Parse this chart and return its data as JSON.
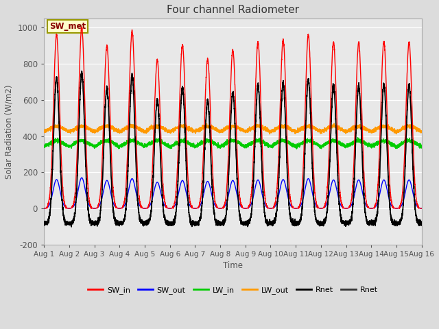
{
  "title": "Four channel Radiometer",
  "xlabel": "Time",
  "ylabel": "Solar Radiation (W/m2)",
  "ylim": [
    -200,
    1050
  ],
  "yticks": [
    -200,
    0,
    200,
    400,
    600,
    800,
    1000
  ],
  "xtick_labels": [
    "Aug 1",
    "Aug 2",
    "Aug 3",
    "Aug 4",
    "Aug 5",
    "Aug 6",
    "Aug 7",
    "Aug 8",
    "Aug 9",
    "Aug 10",
    "Aug 11",
    "Aug 12",
    "Aug 13",
    "Aug 14",
    "Aug 15",
    "Aug 16"
  ],
  "background_color": "#dcdcdc",
  "plot_bg_color": "#e8e8e8",
  "legend_label": "SW_met",
  "legend_bg": "#ffffcc",
  "legend_border": "#999900",
  "series": {
    "SW_in": {
      "color": "#ff0000",
      "lw": 1.0
    },
    "SW_out": {
      "color": "#0000ff",
      "lw": 1.0
    },
    "LW_in": {
      "color": "#00cc00",
      "lw": 1.2
    },
    "LW_out": {
      "color": "#ff9900",
      "lw": 1.2
    },
    "Rnet1": {
      "color": "#000000",
      "lw": 1.2
    },
    "Rnet2": {
      "color": "#000000",
      "lw": 0.8
    }
  },
  "legend_entries": [
    {
      "label": "SW_in",
      "color": "#ff0000"
    },
    {
      "label": "SW_out",
      "color": "#0000ff"
    },
    {
      "label": "LW_in",
      "color": "#00cc00"
    },
    {
      "label": "LW_out",
      "color": "#ff9900"
    },
    {
      "label": "Rnet",
      "color": "#000000"
    },
    {
      "label": "Rnet",
      "color": "#333333"
    }
  ],
  "sw_in_peaks": [
    960,
    1000,
    900,
    980,
    820,
    905,
    825,
    875,
    920,
    930,
    960,
    920,
    920,
    920,
    920
  ],
  "sw_out_peaks": [
    160,
    170,
    155,
    165,
    145,
    155,
    150,
    155,
    158,
    160,
    165,
    158,
    158,
    158,
    158
  ],
  "lw_in_base": 335,
  "lw_out_base": 415,
  "night_rnet": -80
}
